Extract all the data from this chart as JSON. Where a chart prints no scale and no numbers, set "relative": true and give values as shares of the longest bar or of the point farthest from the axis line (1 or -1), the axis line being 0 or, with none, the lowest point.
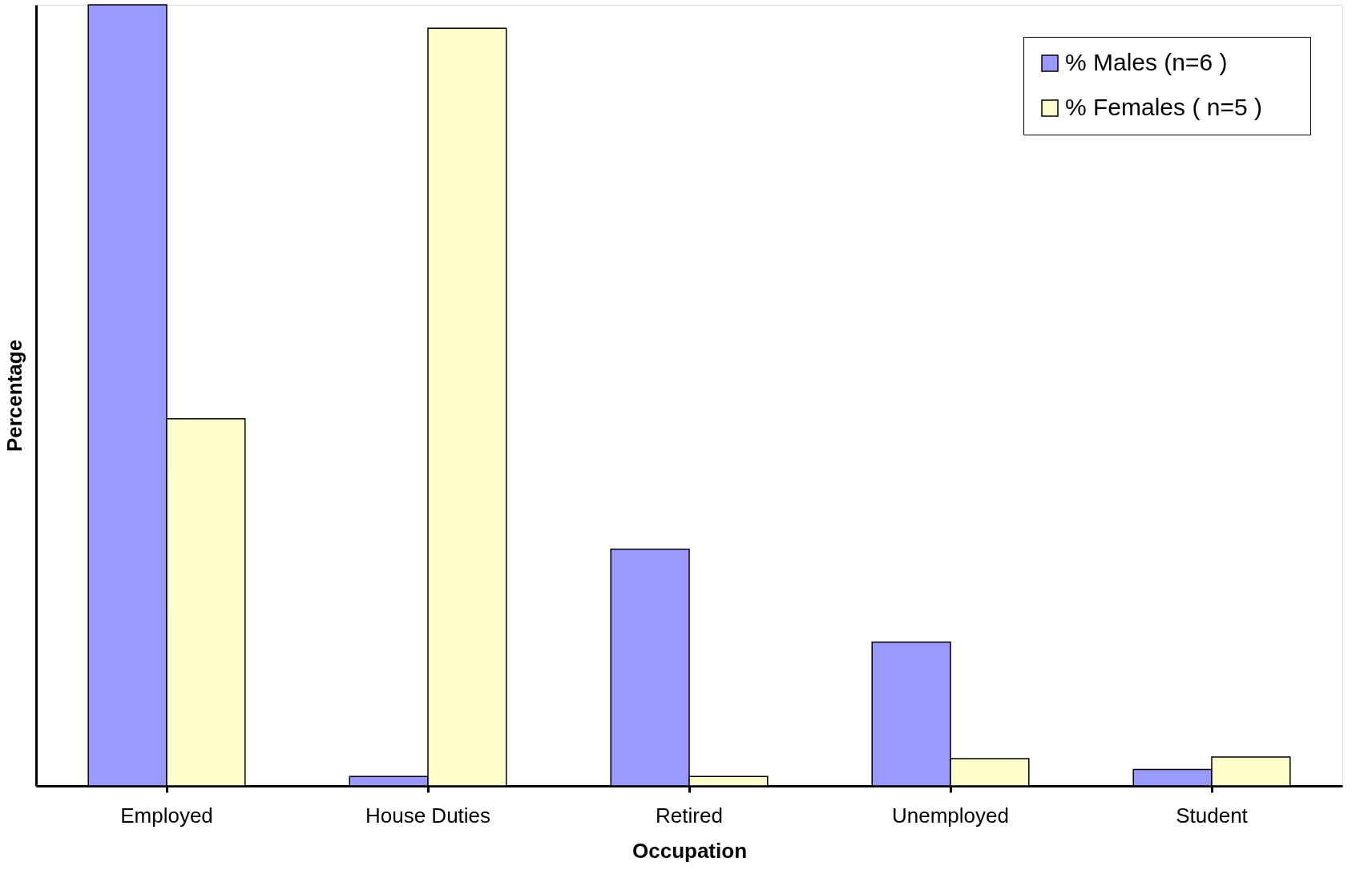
{
  "chart_data": {
    "type": "bar",
    "xlabel": "Occupation",
    "ylabel": "Percentage",
    "relative": true,
    "categories": [
      "Employed",
      "House Duties",
      "Retired",
      "Unemployed",
      "Student"
    ],
    "series": [
      {
        "name": "% Males (n=6      )",
        "color": "#9999ff",
        "values": [
          1,
          0.012,
          0.303,
          0.184,
          0.021
        ]
      },
      {
        "name": "% Females ( n=5      )",
        "color": "#ffffcc",
        "values": [
          0.47,
          0.97,
          0.012,
          0.035,
          0.037
        ]
      }
    ],
    "grid": false,
    "legend": "top right"
  }
}
